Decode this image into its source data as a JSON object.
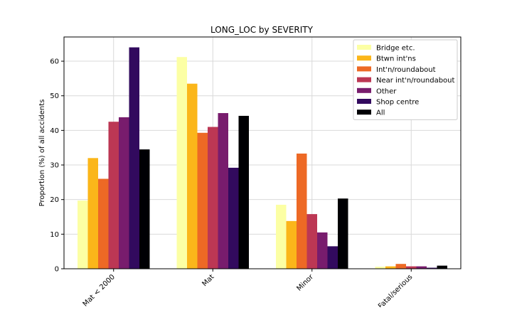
{
  "chart_data": {
    "type": "bar",
    "title": "LONG_LOC by SEVERITY",
    "xlabel": "",
    "ylabel": "Proportion (%) of all accidents",
    "categories": [
      "Mat < 2000",
      "Mat",
      "Minor",
      "Fatal/serious"
    ],
    "ylim": [
      0,
      67
    ],
    "yticks": [
      0,
      10,
      20,
      30,
      40,
      50,
      60
    ],
    "grid": true,
    "legend_position": "top-right",
    "series": [
      {
        "name": "Bridge etc.",
        "color": "#fcffa4",
        "values": [
          19.7,
          61.2,
          18.5,
          0.6
        ]
      },
      {
        "name": "Btwn int'ns",
        "color": "#fbb61a",
        "values": [
          32.0,
          53.5,
          13.8,
          0.7
        ]
      },
      {
        "name": "Int'n/roundabout",
        "color": "#ed6925",
        "values": [
          26.0,
          39.3,
          33.3,
          1.4
        ]
      },
      {
        "name": "Near int'n/roundabout",
        "color": "#bc3754",
        "values": [
          42.5,
          41.0,
          15.8,
          0.7
        ]
      },
      {
        "name": "Other",
        "color": "#781c6d",
        "values": [
          43.8,
          45.0,
          10.5,
          0.7
        ]
      },
      {
        "name": "Shop centre",
        "color": "#320a5e",
        "values": [
          64.0,
          29.2,
          6.5,
          0.3
        ]
      },
      {
        "name": "All",
        "color": "#000004",
        "values": [
          34.5,
          44.2,
          20.3,
          0.9
        ]
      }
    ]
  }
}
